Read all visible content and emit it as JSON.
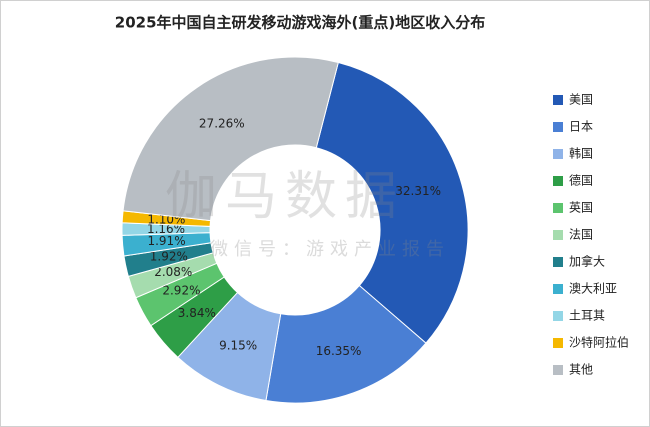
{
  "chart_data": {
    "type": "pie",
    "title": "2025年中国自主研发移动游戏海外(重点)地区收入分布",
    "watermark": "伽马数据",
    "watermark_subtitle": "微信号：游戏产业报告",
    "categories": [
      "美国",
      "日本",
      "韩国",
      "德国",
      "英国",
      "法国",
      "加拿大",
      "澳大利亚",
      "土耳其",
      "沙特阿拉伯",
      "其他"
    ],
    "values": [
      32.31,
      16.35,
      9.15,
      3.84,
      2.92,
      2.08,
      1.92,
      1.91,
      1.16,
      1.1,
      27.26
    ],
    "value_labels": [
      "32.31%",
      "16.35%",
      "9.15%",
      "3.84%",
      "2.92%",
      "2.08%",
      "1.92%",
      "1.91%",
      "1.16%",
      "1.10%",
      "27.26%"
    ],
    "colors": [
      "#2359b5",
      "#4a7fd4",
      "#8fb3e8",
      "#2e9e47",
      "#5cc46e",
      "#a5dcae",
      "#217f8c",
      "#3bb0cf",
      "#93d6e6",
      "#f5b800",
      "#b8bec4"
    ],
    "donut": true,
    "legend": "right"
  }
}
